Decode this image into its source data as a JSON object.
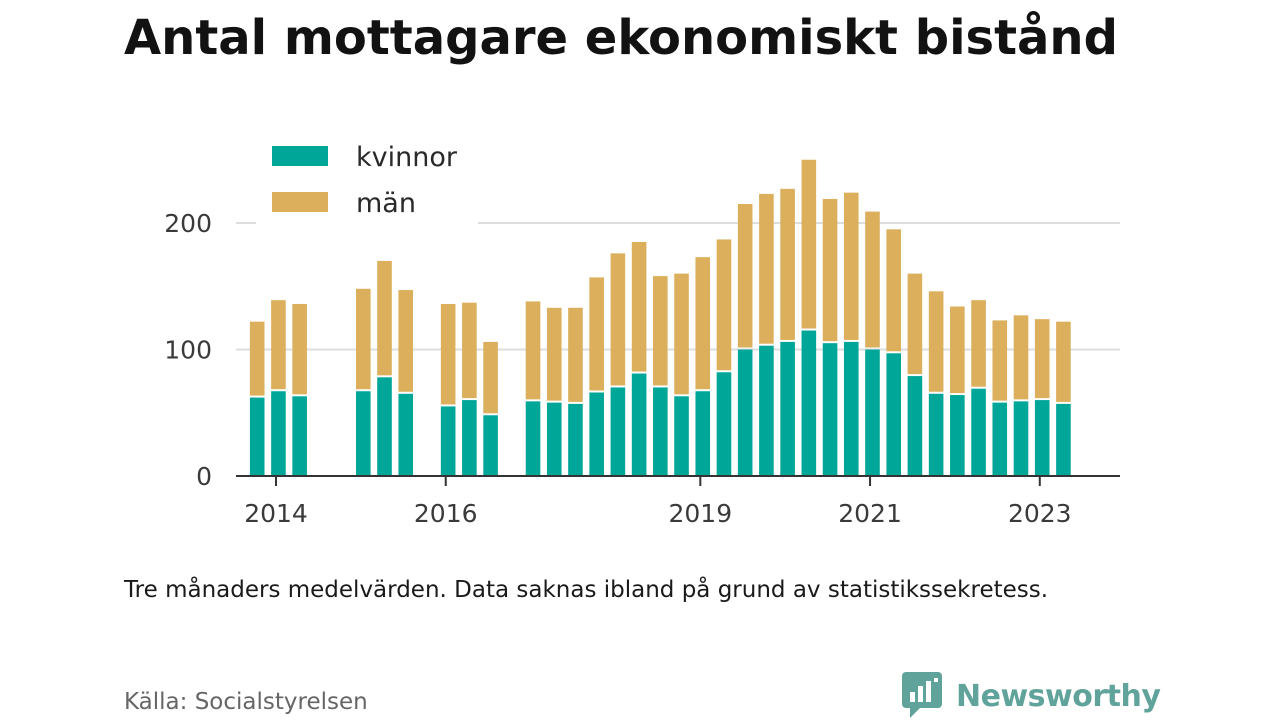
{
  "title": "Antal mottagare ekonomiskt bistånd",
  "note": "Tre månaders medelvärden. Data saknas ibland på grund av statistikssekretess.",
  "source": "Källa: Socialstyrelsen",
  "brand": {
    "name": "Newsworthy",
    "icon": "newsworthy-logo-icon",
    "color": "#5fa39b"
  },
  "colors": {
    "kvinnor": "#00a697",
    "man": "#dbaf5c",
    "grid": "#dddddd",
    "axis": "#333333"
  },
  "chart_data": {
    "type": "bar",
    "stacked": true,
    "ylim": [
      0,
      250
    ],
    "yticks": [
      0,
      100,
      200
    ],
    "xticks": [
      "2014",
      "2016",
      "2019",
      "2021",
      "2023"
    ],
    "grid": "horizontal",
    "legend": "top-left",
    "x_domain": [
      "2014-01",
      "2024-06"
    ],
    "xtick_dates": [
      "2014-01",
      "2016-01",
      "2019-01",
      "2021-01",
      "2023-01"
    ],
    "x": [
      "2014-04",
      "2014-07",
      "2014-10",
      "2015-07",
      "2015-10",
      "2016-01",
      "2016-07",
      "2016-10",
      "2017-01",
      "2017-07",
      "2017-10",
      "2018-01",
      "2018-04",
      "2018-07",
      "2018-10",
      "2019-01",
      "2019-04",
      "2019-07",
      "2019-10",
      "2020-01",
      "2020-04",
      "2020-07",
      "2020-10",
      "2021-01",
      "2021-04",
      "2021-07",
      "2021-10",
      "2022-01",
      "2022-04",
      "2022-07",
      "2022-10",
      "2023-01",
      "2023-04",
      "2023-07",
      "2023-10"
    ],
    "series": [
      {
        "name": "kvinnor",
        "values": [
          62,
          67,
          63,
          67,
          78,
          65,
          55,
          60,
          48,
          59,
          58,
          57,
          66,
          70,
          81,
          70,
          63,
          67,
          82,
          100,
          103,
          106,
          115,
          105,
          106,
          100,
          97,
          79,
          65,
          64,
          69,
          58,
          59,
          60,
          57
        ]
      },
      {
        "name": "män",
        "values": [
          60,
          72,
          73,
          81,
          92,
          82,
          81,
          77,
          58,
          79,
          75,
          76,
          91,
          106,
          104,
          88,
          97,
          106,
          105,
          115,
          120,
          121,
          135,
          114,
          118,
          109,
          98,
          81,
          81,
          70,
          70,
          65,
          68,
          64,
          65
        ]
      }
    ]
  }
}
